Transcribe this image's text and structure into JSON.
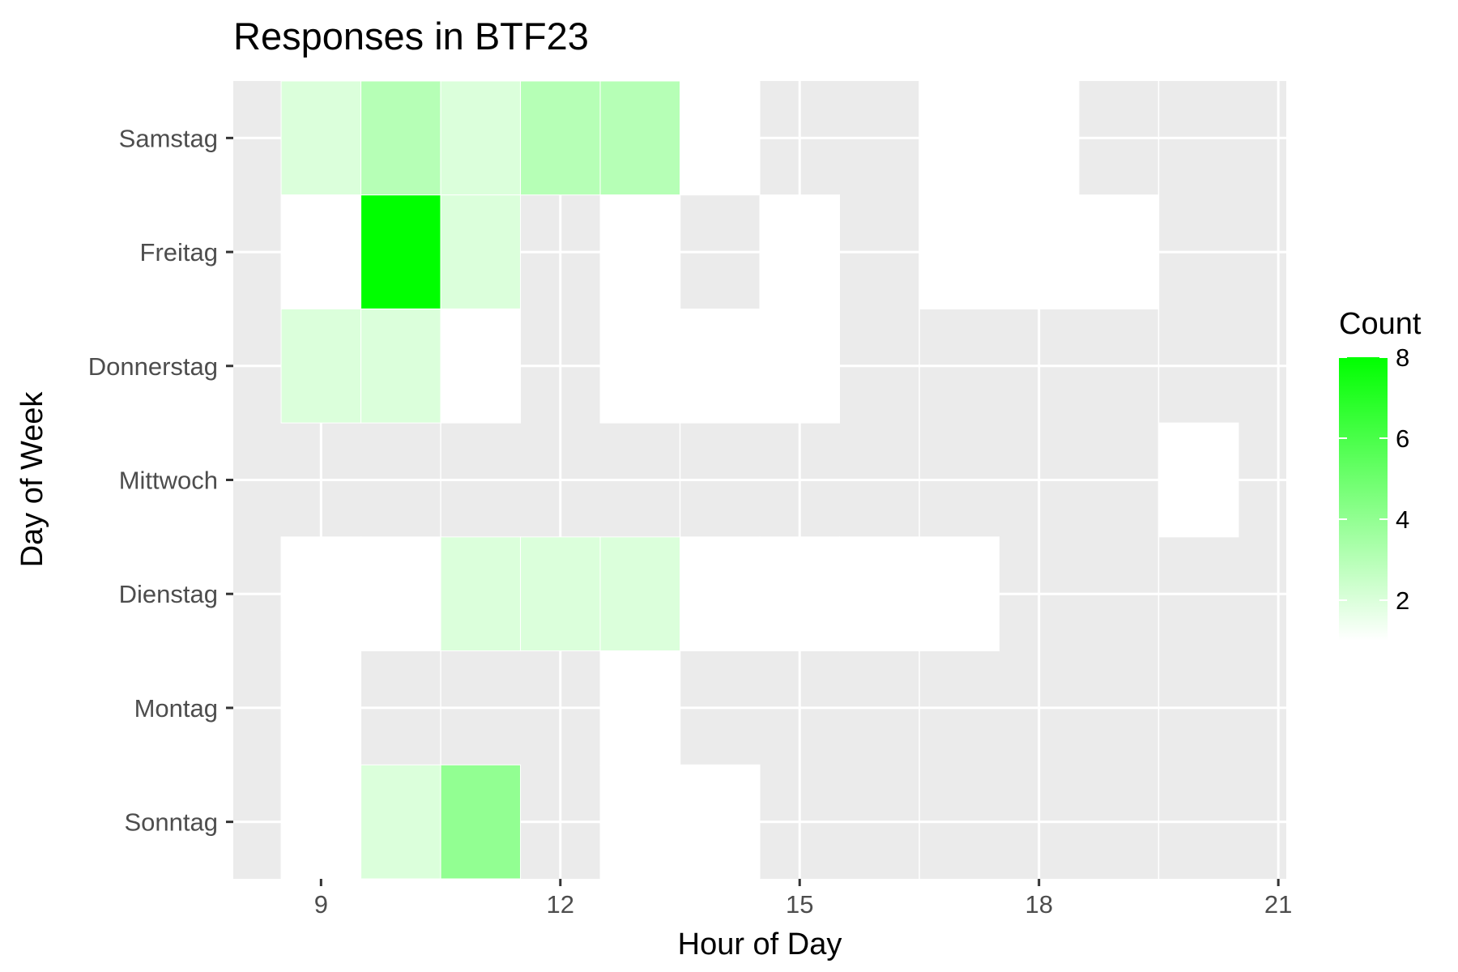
{
  "chart_data": {
    "type": "heatmap",
    "title": "Responses in BTF23",
    "xlabel": "Hour of Day",
    "ylabel": "Day of Week",
    "x_ticks": [
      9,
      12,
      15,
      18,
      21
    ],
    "x_tick_labels": [
      "9",
      "12",
      "15",
      "18",
      "21"
    ],
    "xlim": [
      7.9,
      21.1
    ],
    "y_categories": [
      "Sonntag",
      "Montag",
      "Dienstag",
      "Mittwoch",
      "Donnerstag",
      "Freitag",
      "Samstag"
    ],
    "legend": {
      "title": "Count",
      "ticks": [
        2,
        4,
        6,
        8
      ],
      "tick_labels": [
        "2",
        "4",
        "6",
        "8"
      ],
      "range": [
        1,
        8
      ],
      "low_color": "#ffffff",
      "high_color": "#00ff00",
      "position": "right"
    },
    "colors": {
      "panel_background": "#ebebeb",
      "grid": "#ffffff"
    },
    "grid": true,
    "cells": [
      {
        "day": "Samstag",
        "hour": 9,
        "count": 2
      },
      {
        "day": "Samstag",
        "hour": 10,
        "count": 3
      },
      {
        "day": "Samstag",
        "hour": 11,
        "count": 2
      },
      {
        "day": "Samstag",
        "hour": 12,
        "count": 3
      },
      {
        "day": "Samstag",
        "hour": 13,
        "count": 3
      },
      {
        "day": "Samstag",
        "hour": 14,
        "count": 1
      },
      {
        "day": "Samstag",
        "hour": 17,
        "count": 1
      },
      {
        "day": "Samstag",
        "hour": 18,
        "count": 1
      },
      {
        "day": "Freitag",
        "hour": 9,
        "count": 1
      },
      {
        "day": "Freitag",
        "hour": 10,
        "count": 8
      },
      {
        "day": "Freitag",
        "hour": 11,
        "count": 2
      },
      {
        "day": "Freitag",
        "hour": 13,
        "count": 1
      },
      {
        "day": "Freitag",
        "hour": 15,
        "count": 1
      },
      {
        "day": "Freitag",
        "hour": 17,
        "count": 1
      },
      {
        "day": "Freitag",
        "hour": 18,
        "count": 1
      },
      {
        "day": "Freitag",
        "hour": 19,
        "count": 1
      },
      {
        "day": "Donnerstag",
        "hour": 9,
        "count": 2
      },
      {
        "day": "Donnerstag",
        "hour": 10,
        "count": 2
      },
      {
        "day": "Donnerstag",
        "hour": 11,
        "count": 1
      },
      {
        "day": "Donnerstag",
        "hour": 13,
        "count": 1
      },
      {
        "day": "Donnerstag",
        "hour": 14,
        "count": 1
      },
      {
        "day": "Donnerstag",
        "hour": 15,
        "count": 1
      },
      {
        "day": "Mittwoch",
        "hour": 20,
        "count": 1
      },
      {
        "day": "Dienstag",
        "hour": 9,
        "count": 1
      },
      {
        "day": "Dienstag",
        "hour": 10,
        "count": 1
      },
      {
        "day": "Dienstag",
        "hour": 11,
        "count": 2
      },
      {
        "day": "Dienstag",
        "hour": 12,
        "count": 2
      },
      {
        "day": "Dienstag",
        "hour": 13,
        "count": 2
      },
      {
        "day": "Dienstag",
        "hour": 14,
        "count": 1
      },
      {
        "day": "Dienstag",
        "hour": 15,
        "count": 1
      },
      {
        "day": "Dienstag",
        "hour": 16,
        "count": 1
      },
      {
        "day": "Dienstag",
        "hour": 17,
        "count": 1
      },
      {
        "day": "Montag",
        "hour": 9,
        "count": 1
      },
      {
        "day": "Montag",
        "hour": 13,
        "count": 1
      },
      {
        "day": "Sonntag",
        "hour": 9,
        "count": 1
      },
      {
        "day": "Sonntag",
        "hour": 10,
        "count": 2
      },
      {
        "day": "Sonntag",
        "hour": 11,
        "count": 4
      },
      {
        "day": "Sonntag",
        "hour": 13,
        "count": 1
      },
      {
        "day": "Sonntag",
        "hour": 14,
        "count": 1
      }
    ]
  }
}
